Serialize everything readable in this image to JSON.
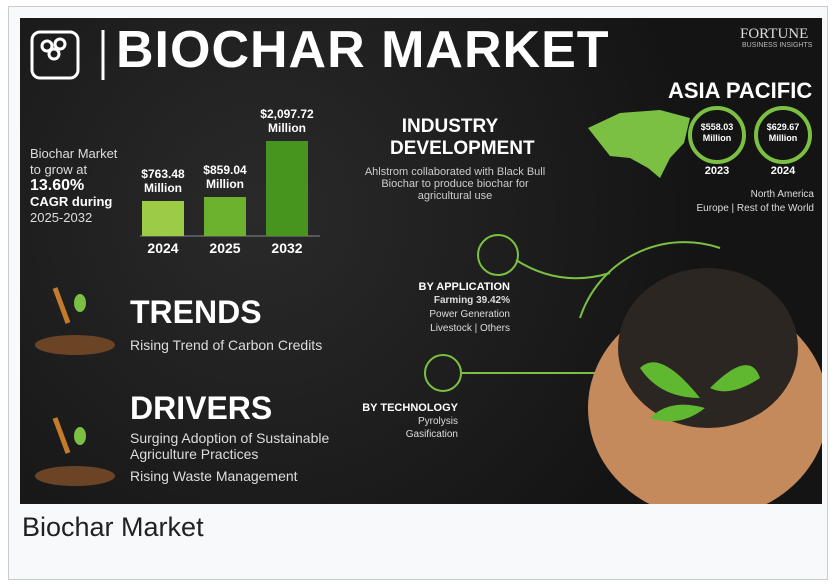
{
  "caption": "Biochar Market",
  "infographic": {
    "title": "BIOCHAR MARKET",
    "brand": "FORTUNE",
    "brand_sub": "BUSINESS INSIGHTS",
    "growth": [
      "Biochar Market",
      "to grow at",
      "13.60%",
      "CAGR during",
      "2025-2032"
    ],
    "region": {
      "name": "ASIA PACIFIC",
      "rings": [
        {
          "label": "$558.03 Million",
          "year": "2023"
        },
        {
          "label": "$629.67 Million",
          "year": "2024"
        }
      ],
      "others": [
        "North America",
        "Europe | Rest of the World"
      ]
    },
    "industry": {
      "title": "INDUSTRY DEVELOPMENT",
      "text": "Ahlstrom collaborated with Black Bull Biochar to produce biochar for agricultural use"
    },
    "application": {
      "title": "BY APPLICATION",
      "items": [
        "Farming 39.42%",
        "Power Generation",
        "Livestock | Others"
      ]
    },
    "technology": {
      "title": "BY TECHNOLOGY",
      "items": [
        "Pyrolysis",
        "Gasification"
      ]
    },
    "trends": {
      "title": "TRENDS",
      "items": [
        "Rising Trend of Carbon Credits"
      ]
    },
    "drivers": {
      "title": "DRIVERS",
      "items": [
        "Surging Adoption of Sustainable Agriculture Practices",
        "Rising Waste Management"
      ]
    }
  },
  "chart_data": {
    "type": "bar",
    "categories": [
      "2024",
      "2025",
      "2032"
    ],
    "values": [
      763.48,
      859.04,
      2097.72
    ],
    "value_labels": [
      "$763.48 Million",
      "$859.04 Million",
      "$2,097.72 Million"
    ],
    "colors": [
      "#9ccc45",
      "#6cb22e",
      "#47951f"
    ]
  }
}
